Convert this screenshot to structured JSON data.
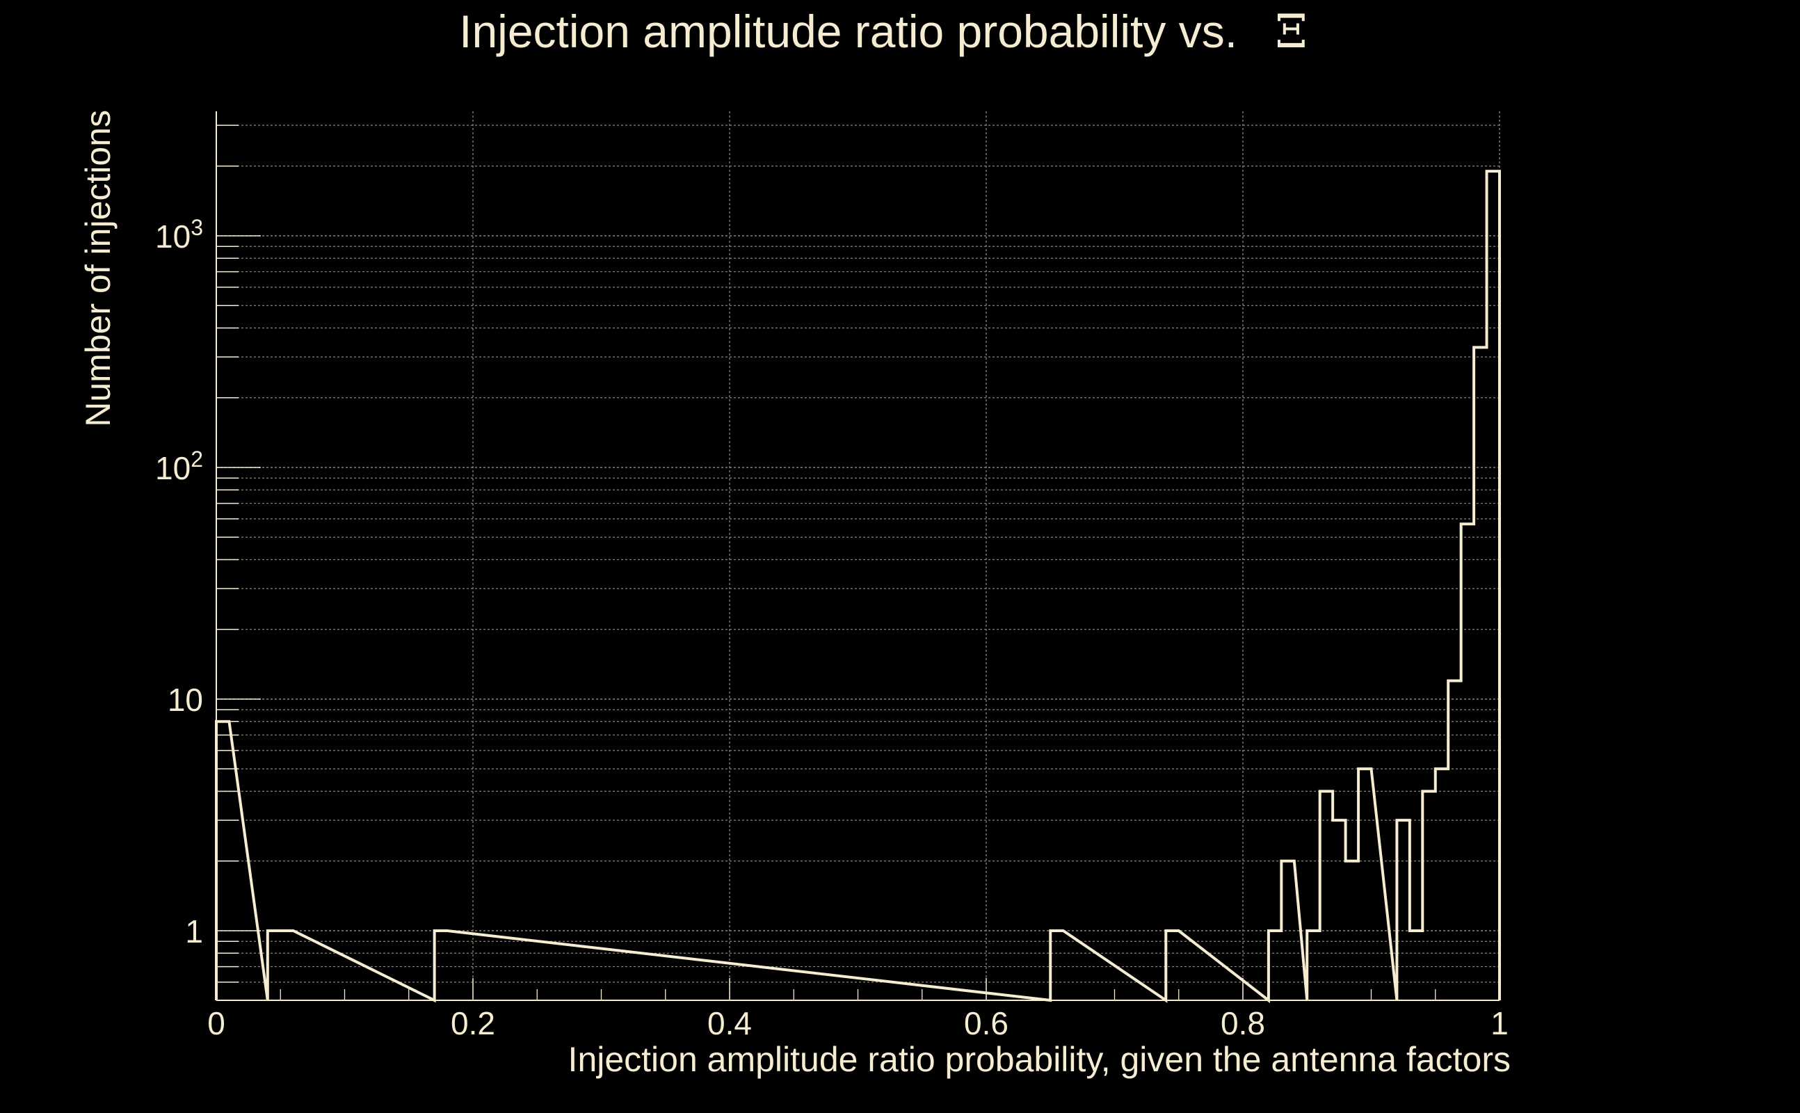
{
  "chart_data": {
    "type": "histogram",
    "title": "Injection amplitude ratio probability vs.",
    "title_symbol": "Ξ",
    "xlabel": "Injection amplitude ratio probability, given the antenna factors",
    "ylabel": "Number of injections",
    "xlim": [
      0,
      1
    ],
    "ylim": [
      0.5,
      3000
    ],
    "y_scale": "log",
    "grid": true,
    "x_ticks": [
      {
        "value": 0,
        "label": "0"
      },
      {
        "value": 0.2,
        "label": "0.2"
      },
      {
        "value": 0.4,
        "label": "0.4"
      },
      {
        "value": 0.6,
        "label": "0.6"
      },
      {
        "value": 0.8,
        "label": "0.8"
      },
      {
        "value": 1,
        "label": "1"
      }
    ],
    "y_ticks": [
      {
        "value": 1,
        "label": "1",
        "exp": ""
      },
      {
        "value": 10,
        "label": "10",
        "exp": ""
      },
      {
        "value": 100,
        "label": "10",
        "exp": "2"
      },
      {
        "value": 1000,
        "label": "10",
        "exp": "3"
      }
    ],
    "bin_width": 0.01,
    "bins": [
      {
        "x": 0.0,
        "count": 8
      },
      {
        "x": 0.04,
        "count": 1
      },
      {
        "x": 0.05,
        "count": 1
      },
      {
        "x": 0.17,
        "count": 1
      },
      {
        "x": 0.65,
        "count": 1
      },
      {
        "x": 0.74,
        "count": 1
      },
      {
        "x": 0.82,
        "count": 1
      },
      {
        "x": 0.83,
        "count": 2
      },
      {
        "x": 0.85,
        "count": 1
      },
      {
        "x": 0.86,
        "count": 4
      },
      {
        "x": 0.87,
        "count": 3
      },
      {
        "x": 0.88,
        "count": 2
      },
      {
        "x": 0.89,
        "count": 5
      },
      {
        "x": 0.92,
        "count": 3
      },
      {
        "x": 0.93,
        "count": 1
      },
      {
        "x": 0.94,
        "count": 4
      },
      {
        "x": 0.95,
        "count": 5
      },
      {
        "x": 0.96,
        "count": 12
      },
      {
        "x": 0.97,
        "count": 57
      },
      {
        "x": 0.98,
        "count": 330
      },
      {
        "x": 0.99,
        "count": 1900
      }
    ],
    "colors": {
      "background": "#000000",
      "foreground": "#f5ecd2",
      "grid": "#8a8678"
    }
  }
}
